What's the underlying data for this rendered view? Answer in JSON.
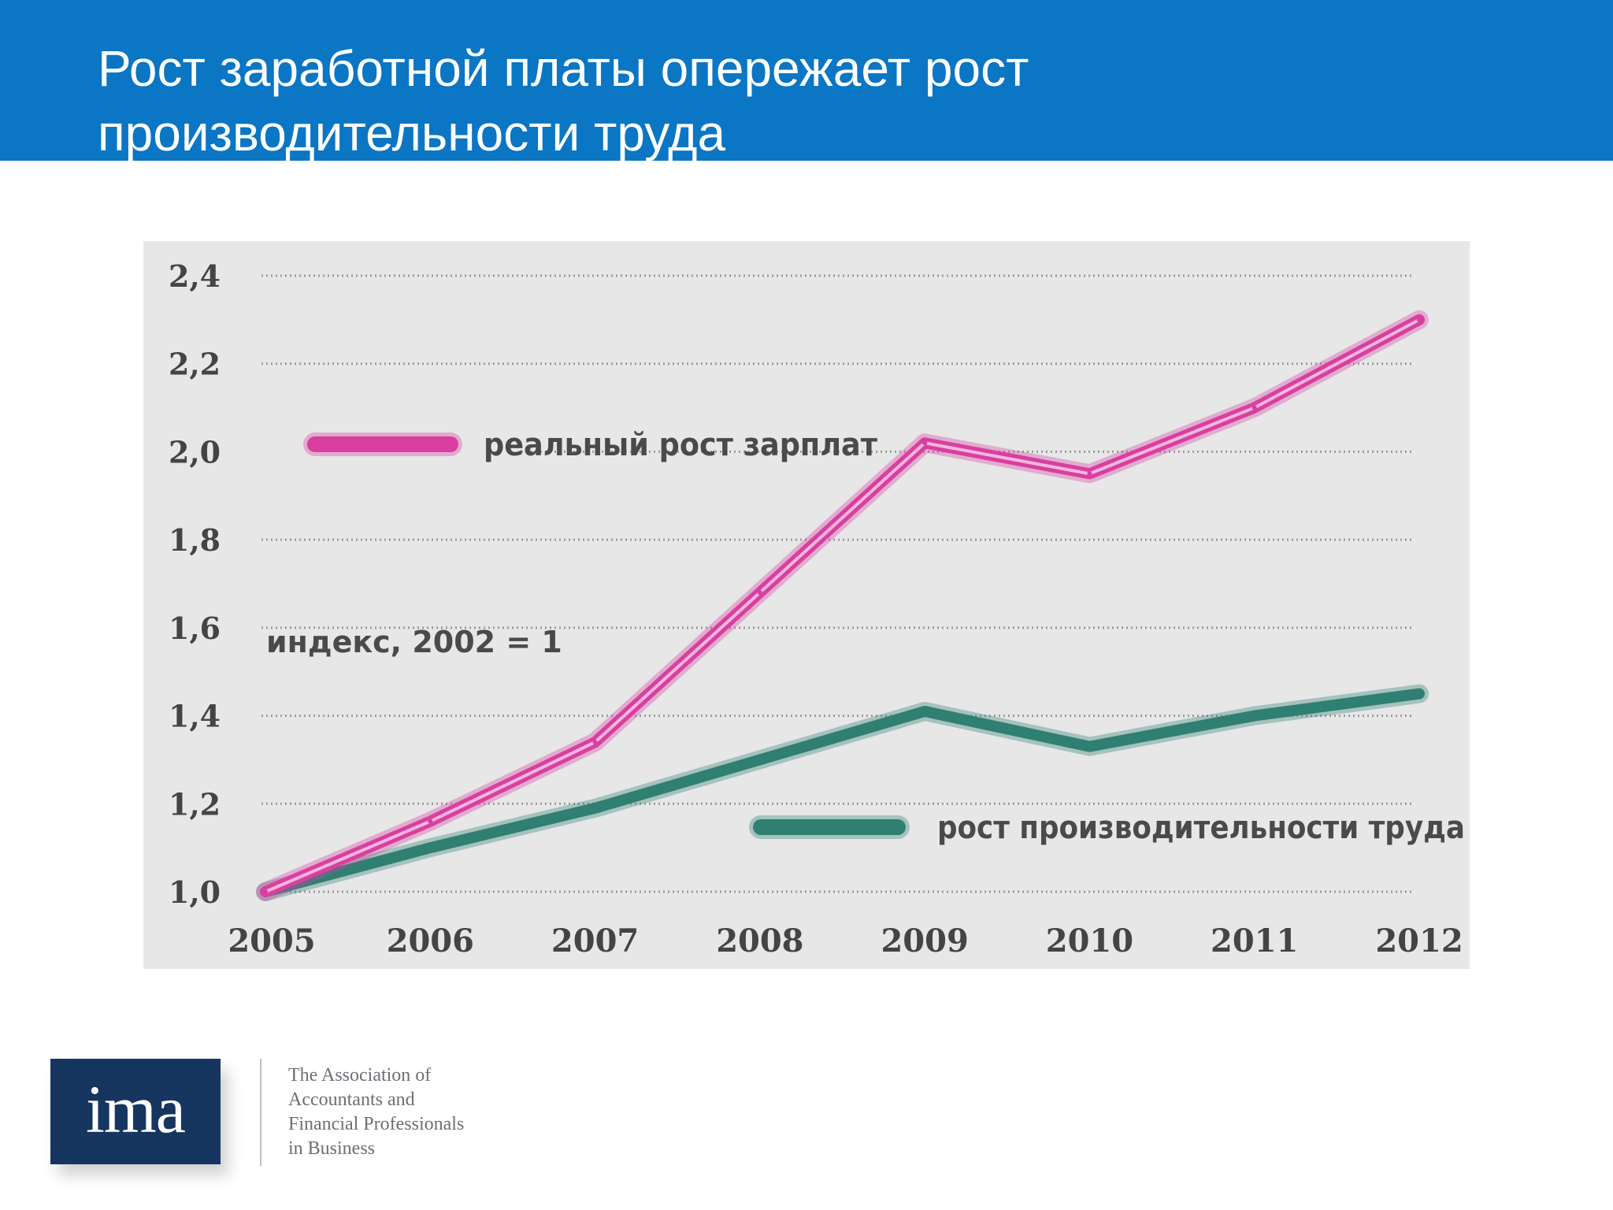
{
  "slide": {
    "title": "Рост заработной платы опережает рост\nпроизводительности труда"
  },
  "chart_data": {
    "type": "line",
    "title": "",
    "annotation": "индекс, 2002 = 1",
    "x": [
      "2005",
      "2006",
      "2007",
      "2008",
      "2009",
      "2010",
      "2011",
      "2012"
    ],
    "y_ticks": [
      "1,0",
      "1,2",
      "1,4",
      "1,6",
      "1,8",
      "2,0",
      "2,2",
      "2,4"
    ],
    "ylim": [
      1.0,
      2.4
    ],
    "grid": true,
    "grid_style": "dotted",
    "series": [
      {
        "name": "реальный рост зарплат",
        "color": "#d83fa0",
        "values": [
          1.0,
          1.16,
          1.34,
          1.68,
          2.02,
          1.95,
          2.1,
          2.3
        ]
      },
      {
        "name": "рост производительности труда",
        "color": "#2f7f72",
        "values": [
          1.0,
          1.1,
          1.19,
          1.3,
          1.41,
          1.33,
          1.4,
          1.45
        ]
      }
    ]
  },
  "logo": {
    "mark": "ima",
    "tagline": [
      "The Association of",
      "Accountants and",
      "Financial Professionals",
      "in Business"
    ]
  }
}
